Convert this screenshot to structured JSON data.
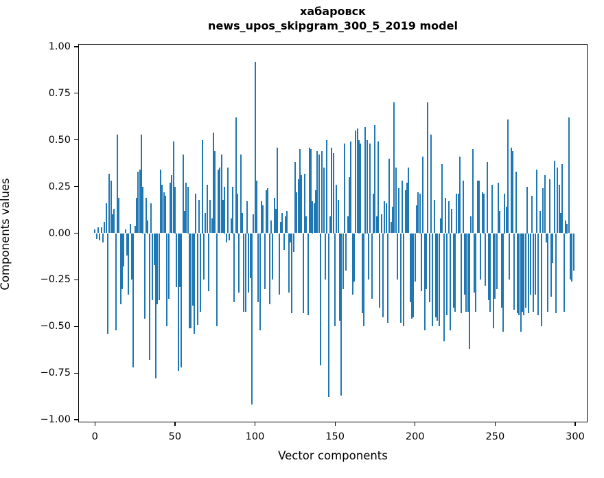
{
  "chart_data": {
    "type": "bar",
    "title": "хабаровск",
    "subtitle": "news_upos_skipgram_300_5_2019 model",
    "xlabel": "Vector components",
    "ylabel": "Components values",
    "n_components": 300,
    "bar_color": "#1f77b4",
    "axis_color": "#000000",
    "background_color": "#ffffff",
    "grid": false,
    "legend": null,
    "xlim": [
      -9.8,
      307.5
    ],
    "ylim": [
      -1.01,
      1.01
    ],
    "x_ticks": {
      "values": [
        0,
        50,
        100,
        150,
        200,
        250,
        300
      ],
      "labels": [
        "0",
        "50",
        "100",
        "150",
        "200",
        "250",
        "300"
      ]
    },
    "y_ticks": {
      "values": [
        1.0,
        0.75,
        0.5,
        0.25,
        0.0,
        -0.25,
        -0.5,
        -0.75,
        -1.0
      ],
      "labels": [
        "1.00",
        "0.75",
        "0.50",
        "0.25",
        "0.00",
        "−0.25",
        "−0.50",
        "−0.75",
        "−1.00"
      ]
    },
    "values": [
      0.02,
      -0.03,
      0.03,
      -0.04,
      0.03,
      -0.05,
      0.06,
      0.16,
      -0.54,
      0.32,
      0.28,
      0.1,
      0.13,
      -0.52,
      0.53,
      0.19,
      -0.38,
      -0.3,
      -0.18,
      0.02,
      -0.12,
      -0.33,
      0.05,
      -0.25,
      -0.72,
      0.04,
      0.19,
      0.33,
      0.34,
      0.53,
      0.25,
      -0.46,
      0.19,
      0.07,
      -0.68,
      0.16,
      -0.36,
      -0.17,
      -0.78,
      -0.38,
      -0.36,
      0.34,
      0.26,
      0.22,
      0.2,
      -0.5,
      -0.35,
      0.27,
      0.31,
      0.49,
      0.25,
      -0.29,
      -0.74,
      -0.29,
      -0.72,
      0.42,
      0.12,
      0.27,
      0.25,
      -0.51,
      -0.51,
      -0.39,
      -0.54,
      0.21,
      -0.49,
      0.18,
      -0.42,
      0.5,
      -0.25,
      0.11,
      0.26,
      -0.31,
      0.18,
      0.08,
      0.54,
      0.44,
      -0.5,
      0.34,
      0.35,
      0.42,
      0.18,
      0.25,
      -0.05,
      0.35,
      -0.04,
      0.08,
      0.25,
      -0.37,
      0.62,
      0.21,
      -0.32,
      0.42,
      0.11,
      -0.42,
      -0.42,
      0.17,
      -0.32,
      -0.24,
      -0.92,
      0.1,
      0.92,
      0.28,
      -0.37,
      -0.52,
      0.17,
      0.15,
      -0.3,
      0.23,
      0.24,
      -0.38,
      0.07,
      -0.25,
      0.19,
      0.13,
      0.46,
      -0.33,
      0.06,
      0.11,
      -0.09,
      0.09,
      0.12,
      -0.32,
      -0.05,
      -0.43,
      -0.1,
      0.38,
      0.22,
      0.29,
      0.45,
      0.31,
      -0.43,
      0.32,
      0.09,
      -0.44,
      0.46,
      0.45,
      0.17,
      0.16,
      0.23,
      0.44,
      0.42,
      -0.71,
      0.44,
      0.35,
      -0.25,
      0.5,
      -0.88,
      0.09,
      0.46,
      0.43,
      -0.5,
      0.26,
      0.18,
      -0.47,
      -0.87,
      -0.3,
      0.48,
      -0.2,
      0.09,
      0.3,
      0.49,
      -0.33,
      -0.26,
      0.55,
      0.56,
      0.5,
      0.48,
      -0.43,
      -0.5,
      0.57,
      0.5,
      -0.25,
      0.48,
      -0.35,
      0.21,
      0.58,
      0.09,
      0.49,
      -0.4,
      0.1,
      -0.45,
      0.17,
      0.16,
      -0.48,
      0.4,
      0.06,
      0.14,
      0.7,
      0.35,
      -0.25,
      0.24,
      -0.48,
      0.28,
      -0.5,
      0.23,
      0.27,
      0.35,
      -0.37,
      -0.46,
      -0.45,
      -0.26,
      0.15,
      0.22,
      0.21,
      -0.31,
      0.41,
      -0.52,
      -0.3,
      0.7,
      -0.37,
      0.53,
      -0.5,
      0.18,
      -0.45,
      -0.47,
      -0.5,
      0.08,
      0.37,
      -0.58,
      0.19,
      -0.44,
      0.17,
      -0.52,
      0.13,
      -0.4,
      -0.42,
      0.21,
      0.21,
      0.41,
      -0.43,
      0.28,
      -0.33,
      -0.42,
      -0.42,
      -0.62,
      0.09,
      0.45,
      -0.32,
      -0.42,
      0.28,
      0.28,
      -0.25,
      0.22,
      0.21,
      -0.28,
      0.38,
      -0.36,
      -0.42,
      0.26,
      -0.51,
      -0.35,
      -0.3,
      0.27,
      0.12,
      -0.4,
      -0.53,
      0.21,
      0.14,
      0.61,
      -0.25,
      0.46,
      0.44,
      -0.41,
      0.33,
      -0.43,
      -0.44,
      -0.53,
      -0.42,
      -0.44,
      -0.4,
      0.25,
      -0.43,
      -0.33,
      0.2,
      -0.42,
      -0.33,
      0.34,
      -0.44,
      0.12,
      -0.5,
      0.24,
      0.31,
      -0.05,
      -0.42,
      0.29,
      -0.34,
      -0.16,
      0.39,
      -0.43,
      0.35,
      0.26,
      0.11,
      0.37,
      -0.42,
      0.07,
      0.05,
      0.62,
      -0.25,
      -0.26,
      -0.2
    ]
  }
}
